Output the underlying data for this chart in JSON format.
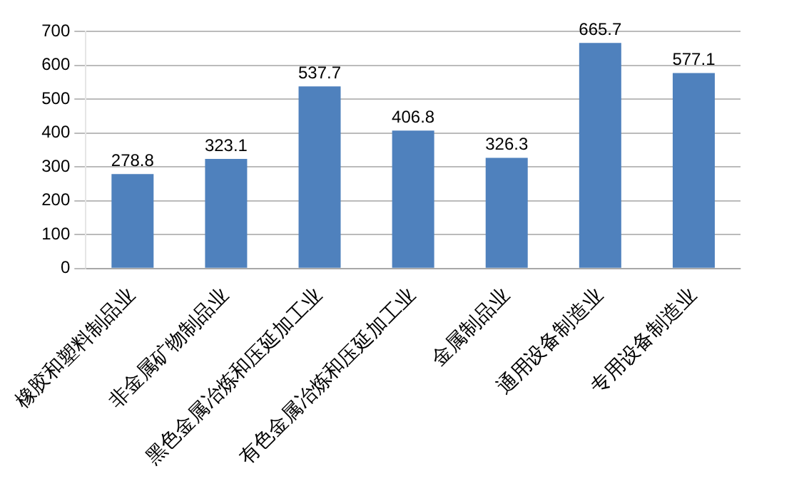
{
  "chart_data": {
    "type": "bar",
    "categories": [
      "橡胶和塑料制品业",
      "非金属矿物制品业",
      "黑色金属冶炼和压延加工业",
      "有色金属冶炼和压延加工业",
      "金属制品业",
      "通用设备制造业",
      "专用设备制造业"
    ],
    "values": [
      278.8,
      323.1,
      537.7,
      406.8,
      326.3,
      665.7,
      577.1
    ],
    "color": "#4f81bd",
    "ylim": [
      0,
      700
    ],
    "yticks": [
      0,
      100,
      200,
      300,
      400,
      500,
      600,
      700
    ],
    "grid": "y",
    "data_labels": true,
    "legend": false
  }
}
